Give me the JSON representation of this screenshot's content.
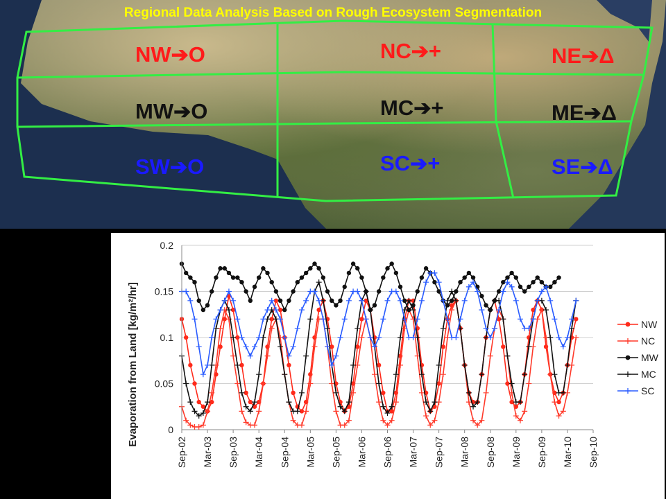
{
  "title": "Regional Data Analysis Based on Rough Ecosystem Segmentation",
  "regions": {
    "nw": {
      "name": "NW",
      "symbol": "O"
    },
    "nc": {
      "name": "NC",
      "symbol": "+"
    },
    "ne": {
      "name": "NE",
      "symbol": "Δ"
    },
    "mw": {
      "name": "MW",
      "symbol": "O"
    },
    "mc": {
      "name": "MC",
      "symbol": "+"
    },
    "me": {
      "name": "ME",
      "symbol": "Δ"
    },
    "sw": {
      "name": "SW",
      "symbol": "O"
    },
    "sc": {
      "name": "SC",
      "symbol": "+"
    },
    "se": {
      "name": "SE",
      "symbol": "Δ"
    }
  },
  "colors": {
    "red": "#ff1a1a",
    "black": "#111111",
    "blue": "#1a1aff",
    "grid_line": "#33ee44",
    "title": "#ffff00"
  },
  "chart_data": {
    "type": "line",
    "ylabel": "Evaporation from Land [kg/m²/hr]",
    "ylim": [
      0,
      0.2
    ],
    "yticks": [
      "0",
      "0.05",
      "0.1",
      "0.15",
      "0.2"
    ],
    "xticks": [
      "Sep-02",
      "Mar-03",
      "Sep-03",
      "Mar-04",
      "Sep-04",
      "Mar-05",
      "Sep-05",
      "Mar-06",
      "Sep-06",
      "Mar-07",
      "Sep-07",
      "Mar-08",
      "Sep-08",
      "Mar-09",
      "Sep-09",
      "Mar-10",
      "Sep-10"
    ],
    "grid": "horizontal",
    "legend": "right",
    "x_start": "Sep-02",
    "series": [
      {
        "name": "NW",
        "color": "#ff2a1a",
        "marker": "circle",
        "values": [
          0.12,
          0.1,
          0.07,
          0.05,
          0.03,
          0.025,
          0.02,
          0.03,
          0.06,
          0.09,
          0.12,
          0.145,
          0.13,
          0.1,
          0.07,
          0.04,
          0.03,
          0.025,
          0.03,
          0.05,
          0.09,
          0.12,
          0.14,
          0.13,
          0.1,
          0.07,
          0.04,
          0.025,
          0.02,
          0.03,
          0.06,
          0.1,
          0.13,
          0.14,
          0.12,
          0.09,
          0.05,
          0.03,
          0.02,
          0.025,
          0.05,
          0.09,
          0.12,
          0.14,
          0.13,
          0.1,
          0.07,
          0.04,
          0.02,
          0.02,
          0.04,
          0.08,
          0.12,
          0.14,
          0.14,
          0.11,
          0.07,
          0.04,
          0.02,
          0.025,
          0.05,
          0.09,
          0.12,
          0.135,
          0.14,
          0.11,
          0.07,
          0.04,
          0.03,
          0.03,
          0.06,
          0.1,
          0.13,
          0.14,
          0.12,
          0.09,
          0.05,
          0.03,
          0.025,
          0.03,
          0.06,
          0.1,
          0.13,
          0.14,
          0.13,
          0.09,
          0.06,
          0.04,
          0.03,
          0.04,
          0.07,
          0.1,
          0.12
        ]
      },
      {
        "name": "NC",
        "color": "#ff3a2a",
        "marker": "plus",
        "values": [
          0.025,
          0.01,
          0.005,
          0.003,
          0.003,
          0.005,
          0.02,
          0.04,
          0.07,
          0.11,
          0.13,
          0.12,
          0.08,
          0.05,
          0.02,
          0.008,
          0.005,
          0.005,
          0.02,
          0.05,
          0.08,
          0.11,
          0.12,
          0.1,
          0.06,
          0.03,
          0.01,
          0.005,
          0.005,
          0.02,
          0.05,
          0.09,
          0.12,
          0.12,
          0.09,
          0.05,
          0.02,
          0.005,
          0.005,
          0.01,
          0.04,
          0.07,
          0.1,
          0.12,
          0.1,
          0.06,
          0.03,
          0.01,
          0.005,
          0.01,
          0.03,
          0.07,
          0.11,
          0.13,
          0.12,
          0.08,
          0.04,
          0.015,
          0.005,
          0.01,
          0.03,
          0.06,
          0.1,
          0.13,
          0.14,
          0.11,
          0.07,
          0.03,
          0.01,
          0.005,
          0.01,
          0.04,
          0.08,
          0.11,
          0.13,
          0.12,
          0.08,
          0.04,
          0.015,
          0.01,
          0.02,
          0.05,
          0.09,
          0.12,
          0.13,
          0.1,
          0.06,
          0.03,
          0.015,
          0.02,
          0.04,
          0.07,
          0.1
        ]
      },
      {
        "name": "MW",
        "color": "#111111",
        "marker": "circle",
        "values": [
          0.18,
          0.17,
          0.165,
          0.16,
          0.14,
          0.13,
          0.135,
          0.15,
          0.165,
          0.175,
          0.175,
          0.17,
          0.165,
          0.165,
          0.16,
          0.15,
          0.14,
          0.155,
          0.165,
          0.175,
          0.17,
          0.16,
          0.15,
          0.14,
          0.13,
          0.14,
          0.15,
          0.16,
          0.165,
          0.17,
          0.175,
          0.18,
          0.175,
          0.165,
          0.15,
          0.14,
          0.135,
          0.14,
          0.155,
          0.17,
          0.18,
          0.175,
          0.165,
          0.15,
          0.13,
          0.135,
          0.15,
          0.165,
          0.175,
          0.18,
          0.17,
          0.155,
          0.14,
          0.13,
          0.135,
          0.15,
          0.165,
          0.175,
          0.17,
          0.16,
          0.15,
          0.14,
          0.135,
          0.14,
          0.15,
          0.16,
          0.165,
          0.17,
          0.165,
          0.155,
          0.145,
          0.135,
          0.13,
          0.14,
          0.15,
          0.16,
          0.165,
          0.17,
          0.165,
          0.155,
          0.15,
          0.155,
          0.16,
          0.165,
          0.16,
          0.155,
          0.155,
          0.16,
          0.165
        ]
      },
      {
        "name": "MC",
        "color": "#111111",
        "marker": "plus",
        "values": [
          0.08,
          0.05,
          0.03,
          0.02,
          0.015,
          0.018,
          0.03,
          0.07,
          0.11,
          0.13,
          0.14,
          0.13,
          0.1,
          0.07,
          0.04,
          0.025,
          0.02,
          0.03,
          0.06,
          0.1,
          0.12,
          0.13,
          0.12,
          0.09,
          0.06,
          0.03,
          0.02,
          0.02,
          0.04,
          0.08,
          0.12,
          0.15,
          0.16,
          0.14,
          0.11,
          0.07,
          0.04,
          0.025,
          0.02,
          0.03,
          0.07,
          0.11,
          0.14,
          0.15,
          0.13,
          0.09,
          0.05,
          0.025,
          0.018,
          0.025,
          0.06,
          0.1,
          0.13,
          0.14,
          0.13,
          0.1,
          0.06,
          0.03,
          0.02,
          0.03,
          0.07,
          0.11,
          0.14,
          0.15,
          0.14,
          0.11,
          0.07,
          0.04,
          0.025,
          0.03,
          0.06,
          0.1,
          0.13,
          0.14,
          0.14,
          0.12,
          0.08,
          0.05,
          0.03,
          0.03,
          0.06,
          0.09,
          0.12,
          0.14,
          0.14,
          0.13,
          0.1,
          0.06,
          0.04,
          0.04,
          0.07,
          0.11,
          0.14
        ]
      },
      {
        "name": "SC",
        "color": "#2a5cff",
        "marker": "plus",
        "values": [
          0.15,
          0.15,
          0.14,
          0.12,
          0.09,
          0.06,
          0.07,
          0.1,
          0.12,
          0.13,
          0.14,
          0.15,
          0.14,
          0.12,
          0.1,
          0.09,
          0.08,
          0.09,
          0.1,
          0.12,
          0.13,
          0.14,
          0.13,
          0.12,
          0.1,
          0.08,
          0.09,
          0.11,
          0.13,
          0.14,
          0.15,
          0.15,
          0.14,
          0.12,
          0.09,
          0.07,
          0.08,
          0.1,
          0.12,
          0.14,
          0.15,
          0.15,
          0.14,
          0.12,
          0.1,
          0.09,
          0.1,
          0.12,
          0.14,
          0.15,
          0.15,
          0.14,
          0.12,
          0.1,
          0.1,
          0.12,
          0.14,
          0.16,
          0.17,
          0.17,
          0.16,
          0.14,
          0.12,
          0.1,
          0.1,
          0.12,
          0.14,
          0.155,
          0.16,
          0.15,
          0.13,
          0.11,
          0.1,
          0.11,
          0.13,
          0.15,
          0.16,
          0.155,
          0.14,
          0.12,
          0.11,
          0.11,
          0.12,
          0.14,
          0.15,
          0.155,
          0.14,
          0.12,
          0.1,
          0.09,
          0.1,
          0.12,
          0.14
        ]
      }
    ]
  }
}
